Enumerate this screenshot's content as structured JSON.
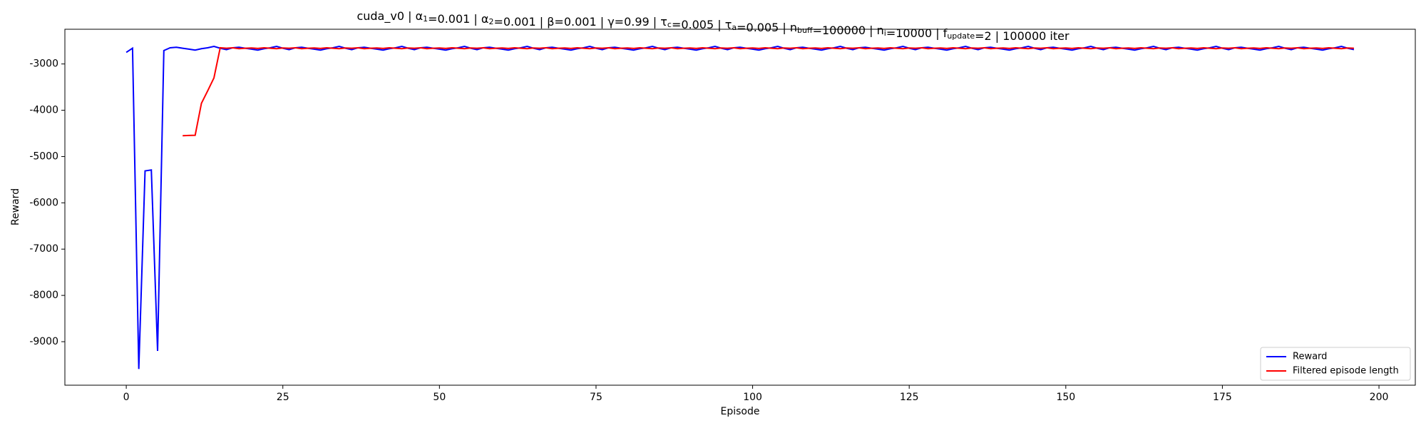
{
  "chart_data": {
    "type": "line",
    "title": {
      "text": [
        "cuda_v0 | α",
        "=0.001 | α",
        "=0.001 | β=0.001 | γ=0.99 | τ",
        "=0.005 | τ",
        "=0.005 | n",
        "=100000 | n",
        "=10000 | f",
        "=2 | 100000 iter"
      ],
      "sub": [
        "1",
        "2",
        "c",
        "a",
        "buff",
        "i",
        "update"
      ]
    },
    "xlabel": "Episode",
    "ylabel": "Reward",
    "xlim": [
      -9.8,
      205.8
    ],
    "ylim": [
      -9940,
      -2250
    ],
    "xticks": [
      0,
      25,
      50,
      75,
      100,
      125,
      150,
      175,
      200
    ],
    "yticks": [
      -9000,
      -8000,
      -7000,
      -6000,
      -5000,
      -4000,
      -3000
    ],
    "legend": "lower right",
    "x": [
      0,
      1,
      2,
      3,
      4,
      5,
      6,
      7,
      8,
      9,
      10,
      11,
      12,
      13,
      14,
      15,
      16,
      17,
      18,
      19,
      20,
      21,
      22,
      23,
      24,
      25,
      26,
      27,
      28,
      29,
      30,
      31,
      32,
      33,
      34,
      35,
      36,
      37,
      38,
      39,
      40,
      41,
      42,
      43,
      44,
      45,
      46,
      47,
      48,
      49,
      50,
      51,
      52,
      53,
      54,
      55,
      56,
      57,
      58,
      59,
      60,
      61,
      62,
      63,
      64,
      65,
      66,
      67,
      68,
      69,
      70,
      71,
      72,
      73,
      74,
      75,
      76,
      77,
      78,
      79,
      80,
      81,
      82,
      83,
      84,
      85,
      86,
      87,
      88,
      89,
      90,
      91,
      92,
      93,
      94,
      95,
      96,
      97,
      98,
      99,
      100,
      101,
      102,
      103,
      104,
      105,
      106,
      107,
      108,
      109,
      110,
      111,
      112,
      113,
      114,
      115,
      116,
      117,
      118,
      119,
      120,
      121,
      122,
      123,
      124,
      125,
      126,
      127,
      128,
      129,
      130,
      131,
      132,
      133,
      134,
      135,
      136,
      137,
      138,
      139,
      140,
      141,
      142,
      143,
      144,
      145,
      146,
      147,
      148,
      149,
      150,
      151,
      152,
      153,
      154,
      155,
      156,
      157,
      158,
      159,
      160,
      161,
      162,
      163,
      164,
      165,
      166,
      167,
      168,
      169,
      170,
      171,
      172,
      173,
      174,
      175,
      176,
      177,
      178,
      179,
      180,
      181,
      182,
      183,
      184,
      185,
      186,
      187,
      188,
      189,
      190,
      191,
      192,
      193,
      194,
      195,
      196
    ],
    "series": [
      {
        "name": "Reward",
        "color": "#0000ff",
        "values": [
          -2750,
          -2660,
          -9590,
          -5310,
          -5290,
          -9200,
          -2710,
          -2650,
          -2640,
          -2660,
          -2680,
          -2700,
          -2670,
          -2650,
          -2620,
          -2660,
          -2690,
          -2650,
          -2640,
          -2660,
          -2680,
          -2700,
          -2670,
          -2650,
          -2620,
          -2660,
          -2690,
          -2650,
          -2640,
          -2660,
          -2680,
          -2700,
          -2670,
          -2650,
          -2620,
          -2660,
          -2690,
          -2650,
          -2640,
          -2660,
          -2680,
          -2700,
          -2670,
          -2650,
          -2620,
          -2660,
          -2690,
          -2650,
          -2640,
          -2660,
          -2680,
          -2700,
          -2670,
          -2650,
          -2620,
          -2660,
          -2690,
          -2650,
          -2640,
          -2660,
          -2680,
          -2700,
          -2670,
          -2650,
          -2620,
          -2660,
          -2690,
          -2650,
          -2640,
          -2660,
          -2680,
          -2700,
          -2670,
          -2650,
          -2620,
          -2660,
          -2690,
          -2650,
          -2640,
          -2660,
          -2680,
          -2700,
          -2670,
          -2650,
          -2620,
          -2660,
          -2690,
          -2650,
          -2640,
          -2660,
          -2680,
          -2700,
          -2670,
          -2650,
          -2620,
          -2660,
          -2690,
          -2650,
          -2640,
          -2660,
          -2680,
          -2700,
          -2670,
          -2650,
          -2620,
          -2660,
          -2690,
          -2650,
          -2640,
          -2660,
          -2680,
          -2700,
          -2670,
          -2650,
          -2620,
          -2660,
          -2690,
          -2650,
          -2640,
          -2660,
          -2680,
          -2700,
          -2670,
          -2650,
          -2620,
          -2660,
          -2690,
          -2650,
          -2640,
          -2660,
          -2680,
          -2700,
          -2670,
          -2650,
          -2620,
          -2660,
          -2690,
          -2650,
          -2640,
          -2660,
          -2680,
          -2700,
          -2670,
          -2650,
          -2620,
          -2660,
          -2690,
          -2650,
          -2640,
          -2660,
          -2680,
          -2700,
          -2670,
          -2650,
          -2620,
          -2660,
          -2690,
          -2650,
          -2640,
          -2660,
          -2680,
          -2700,
          -2670,
          -2650,
          -2620,
          -2660,
          -2690,
          -2650,
          -2640,
          -2660,
          -2680,
          -2700,
          -2670,
          -2650,
          -2620,
          -2660,
          -2690,
          -2650,
          -2640,
          -2660,
          -2680,
          -2700,
          -2670,
          -2650,
          -2620,
          -2660,
          -2690,
          -2650,
          -2640,
          -2660,
          -2680,
          -2700,
          -2670,
          -2650,
          -2620,
          -2660,
          -2690
        ]
      },
      {
        "name": "Filtered episode length",
        "color": "#ff0000",
        "values": [
          null,
          null,
          null,
          null,
          null,
          null,
          null,
          null,
          null,
          -4550,
          -4545,
          -4540,
          -3850,
          -3580,
          -3300,
          -2650,
          -2660,
          -2650,
          -2670,
          -2660,
          -2655,
          -2665,
          -2650,
          -2660,
          -2670,
          -2655,
          -2660,
          -2650,
          -2670,
          -2660,
          -2655,
          -2665,
          -2650,
          -2660,
          -2670,
          -2655,
          -2660,
          -2650,
          -2670,
          -2660,
          -2655,
          -2665,
          -2650,
          -2660,
          -2670,
          -2655,
          -2660,
          -2650,
          -2670,
          -2660,
          -2655,
          -2665,
          -2650,
          -2660,
          -2670,
          -2655,
          -2660,
          -2650,
          -2670,
          -2660,
          -2655,
          -2665,
          -2650,
          -2660,
          -2670,
          -2655,
          -2660,
          -2650,
          -2670,
          -2660,
          -2655,
          -2665,
          -2650,
          -2660,
          -2670,
          -2655,
          -2660,
          -2650,
          -2670,
          -2660,
          -2655,
          -2665,
          -2650,
          -2660,
          -2670,
          -2655,
          -2660,
          -2650,
          -2670,
          -2660,
          -2655,
          -2665,
          -2650,
          -2660,
          -2670,
          -2655,
          -2660,
          -2650,
          -2670,
          -2660,
          -2655,
          -2665,
          -2650,
          -2660,
          -2670,
          -2655,
          -2660,
          -2650,
          -2670,
          -2660,
          -2655,
          -2665,
          -2650,
          -2660,
          -2670,
          -2655,
          -2660,
          -2650,
          -2670,
          -2660,
          -2655,
          -2665,
          -2650,
          -2660,
          -2670,
          -2655,
          -2660,
          -2650,
          -2670,
          -2660,
          -2655,
          -2665,
          -2650,
          -2660,
          -2670,
          -2655,
          -2660,
          -2650,
          -2670,
          -2660,
          -2655,
          -2665,
          -2650,
          -2660,
          -2670,
          -2655,
          -2660,
          -2650,
          -2670,
          -2660,
          -2655,
          -2665,
          -2650,
          -2660,
          -2670,
          -2655,
          -2660,
          -2650,
          -2670,
          -2660,
          -2655,
          -2665,
          -2650,
          -2660,
          -2670,
          -2655,
          -2660,
          -2650,
          -2670,
          -2660,
          -2655,
          -2665,
          -2650,
          -2660,
          -2670,
          -2655,
          -2660,
          -2650,
          -2670,
          -2660,
          -2655,
          -2665,
          -2650,
          -2660,
          -2670,
          -2655,
          -2660,
          -2650,
          -2670,
          -2660,
          -2655,
          -2665,
          -2650,
          -2660,
          -2670,
          -2655,
          -2660
        ]
      }
    ]
  }
}
